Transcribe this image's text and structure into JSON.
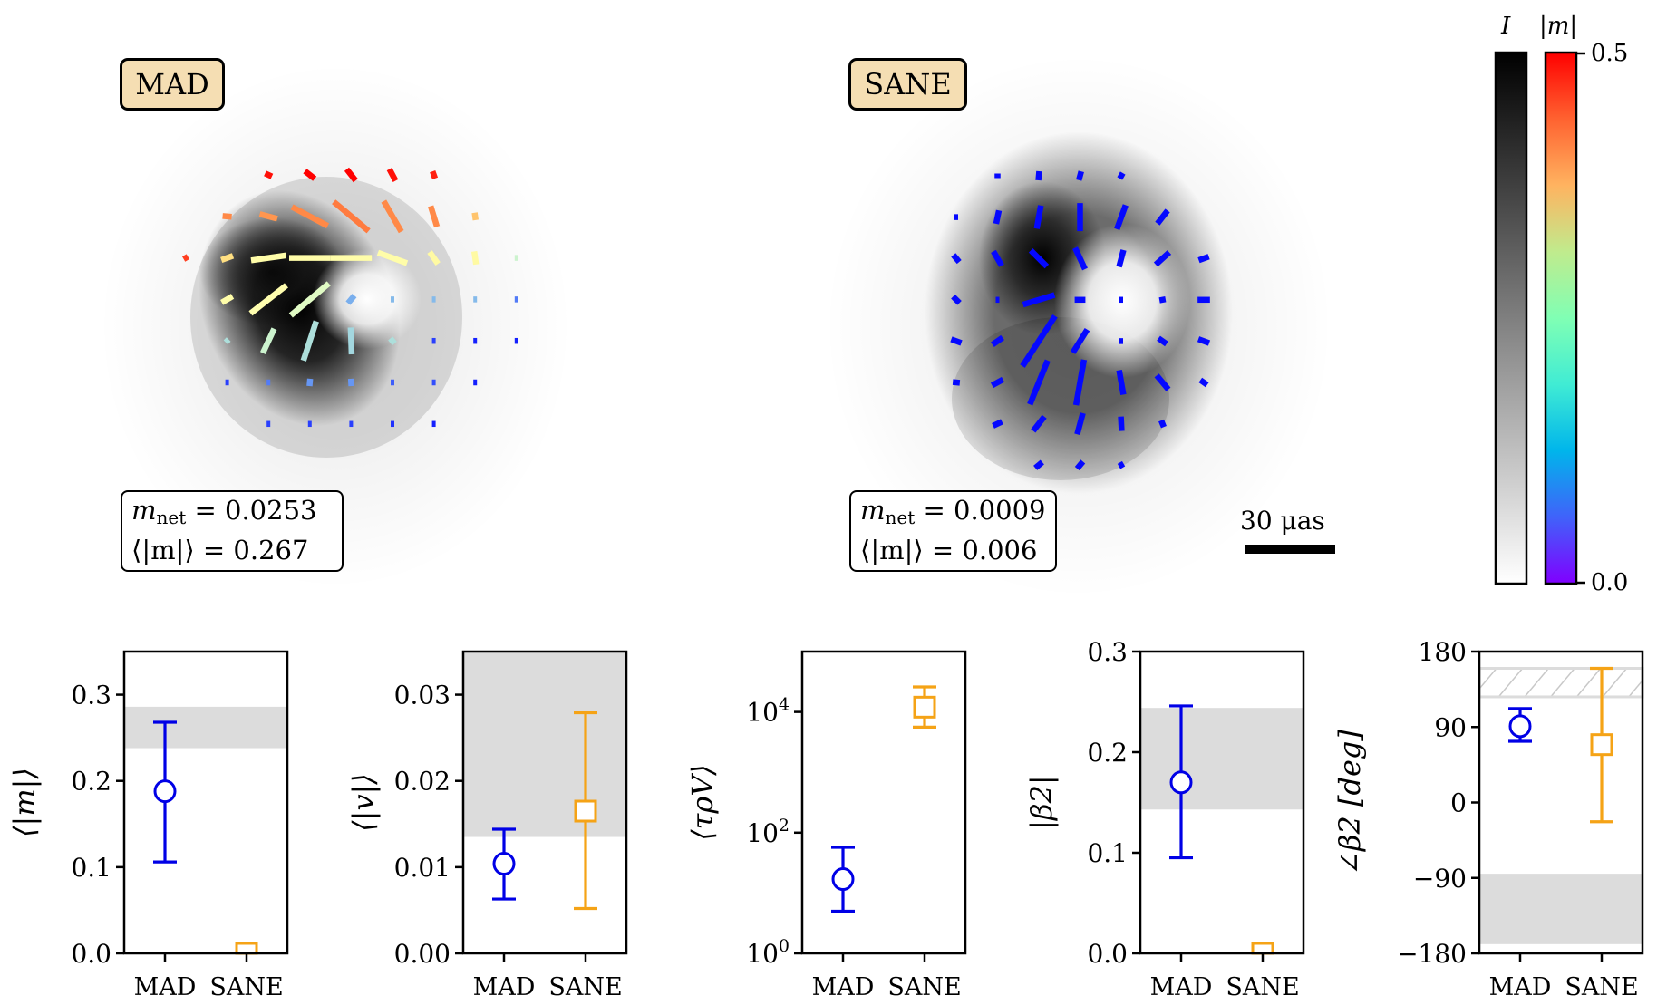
{
  "image_panels": [
    {
      "label": "MAD",
      "stats": {
        "mnet_label": "m",
        "mnet_sub": "net",
        "mnet_value": "= 0.0253",
        "avg_label": "⟨|m|⟩",
        "avg_value": "= 0.267"
      },
      "vectors": [
        {
          "col": 2,
          "row": 0,
          "angle": -25,
          "length": 0.18,
          "m": 0.49
        },
        {
          "col": 3,
          "row": 0,
          "angle": -38,
          "length": 0.3,
          "m": 0.5
        },
        {
          "col": 4,
          "row": 0,
          "angle": -52,
          "length": 0.35,
          "m": 0.5
        },
        {
          "col": 5,
          "row": 0,
          "angle": -62,
          "length": 0.32,
          "m": 0.49
        },
        {
          "col": 6,
          "row": 0,
          "angle": -70,
          "length": 0.18,
          "m": 0.48
        },
        {
          "col": 1,
          "row": 1,
          "angle": -5,
          "length": 0.22,
          "m": 0.41
        },
        {
          "col": 2,
          "row": 1,
          "angle": -15,
          "length": 0.44,
          "m": 0.4
        },
        {
          "col": 3,
          "row": 1,
          "angle": -28,
          "length": 0.98,
          "m": 0.41
        },
        {
          "col": 4,
          "row": 1,
          "angle": -40,
          "length": 1.1,
          "m": 0.42
        },
        {
          "col": 5,
          "row": 1,
          "angle": -60,
          "length": 0.85,
          "m": 0.41
        },
        {
          "col": 6,
          "row": 1,
          "angle": -73,
          "length": 0.52,
          "m": 0.41
        },
        {
          "col": 7,
          "row": 1,
          "angle": -82,
          "length": 0.18,
          "m": 0.36
        },
        {
          "col": 0,
          "row": 2,
          "angle": 30,
          "length": 0.12,
          "m": 0.46
        },
        {
          "col": 1,
          "row": 2,
          "angle": 20,
          "length": 0.3,
          "m": 0.33
        },
        {
          "col": 2,
          "row": 2,
          "angle": 8,
          "length": 0.85,
          "m": 0.27
        },
        {
          "col": 3,
          "row": 2,
          "angle": 0,
          "length": 1.0,
          "m": 0.27
        },
        {
          "col": 4,
          "row": 2,
          "angle": 0,
          "length": 1.0,
          "m": 0.27
        },
        {
          "col": 5,
          "row": 2,
          "angle": -20,
          "length": 0.75,
          "m": 0.27
        },
        {
          "col": 6,
          "row": 2,
          "angle": -55,
          "length": 0.35,
          "m": 0.28
        },
        {
          "col": 7,
          "row": 2,
          "angle": -82,
          "length": 0.32,
          "m": 0.28
        },
        {
          "col": 8,
          "row": 2,
          "angle": 0,
          "length": 0.04,
          "m": 0.2
        },
        {
          "col": 1,
          "row": 3,
          "angle": 30,
          "length": 0.3,
          "m": 0.27
        },
        {
          "col": 2,
          "row": 3,
          "angle": 38,
          "length": 1.1,
          "m": 0.26
        },
        {
          "col": 3,
          "row": 3,
          "angle": 40,
          "length": 1.2,
          "m": 0.22
        },
        {
          "col": 4,
          "row": 3,
          "angle": 50,
          "length": 0.24,
          "m": 0.12
        },
        {
          "col": 5,
          "row": 3,
          "angle": 0,
          "length": 0.04,
          "m": 0.13
        },
        {
          "col": 6,
          "row": 3,
          "angle": 0,
          "length": 0.04,
          "m": 0.13
        },
        {
          "col": 7,
          "row": 3,
          "angle": 0,
          "length": 0.04,
          "m": 0.13
        },
        {
          "col": 8,
          "row": 3,
          "angle": 0,
          "length": 0.04,
          "m": 0.08
        },
        {
          "col": 1,
          "row": 4,
          "angle": 45,
          "length": 0.1,
          "m": 0.17
        },
        {
          "col": 2,
          "row": 4,
          "angle": 65,
          "length": 0.65,
          "m": 0.2
        },
        {
          "col": 3,
          "row": 4,
          "angle": 72,
          "length": 1.0,
          "m": 0.17
        },
        {
          "col": 4,
          "row": 4,
          "angle": -88,
          "length": 0.65,
          "m": 0.16
        },
        {
          "col": 5,
          "row": 4,
          "angle": -50,
          "length": 0.16,
          "m": 0.17
        },
        {
          "col": 6,
          "row": 4,
          "angle": 0,
          "length": 0.04,
          "m": 0.04
        },
        {
          "col": 7,
          "row": 4,
          "angle": 0,
          "length": 0.04,
          "m": 0.02
        },
        {
          "col": 8,
          "row": 4,
          "angle": 0,
          "length": 0.04,
          "m": 0.02
        },
        {
          "col": 1,
          "row": 5,
          "angle": 0,
          "length": 0.04,
          "m": 0.04
        },
        {
          "col": 2,
          "row": 5,
          "angle": 0,
          "length": 0.04,
          "m": 0.08
        },
        {
          "col": 3,
          "row": 5,
          "angle": 85,
          "length": 0.18,
          "m": 0.1
        },
        {
          "col": 4,
          "row": 5,
          "angle": -87,
          "length": 0.18,
          "m": 0.1
        },
        {
          "col": 5,
          "row": 5,
          "angle": 0,
          "length": 0.04,
          "m": 0.06
        },
        {
          "col": 6,
          "row": 5,
          "angle": 0,
          "length": 0.04,
          "m": 0.05
        },
        {
          "col": 7,
          "row": 5,
          "angle": 0,
          "length": 0.04,
          "m": 0.02
        },
        {
          "col": 2,
          "row": 6,
          "angle": 0,
          "length": 0.04,
          "m": 0.04
        },
        {
          "col": 3,
          "row": 6,
          "angle": 0,
          "length": 0.04,
          "m": 0.04
        },
        {
          "col": 4,
          "row": 6,
          "angle": 0,
          "length": 0.04,
          "m": 0.04
        },
        {
          "col": 5,
          "row": 6,
          "angle": 0,
          "length": 0.04,
          "m": 0.03
        },
        {
          "col": 6,
          "row": 6,
          "angle": 0,
          "length": 0.04,
          "m": 0.02
        }
      ]
    },
    {
      "label": "SANE",
      "stats": {
        "mnet_label": "m",
        "mnet_sub": "net",
        "mnet_value": "= 0.0009",
        "avg_label": "⟨|m|⟩",
        "avg_value": "= 0.006"
      },
      "vectors": [
        {
          "col": 1,
          "row": 0,
          "angle": 90,
          "length": 0.11,
          "m": 0.005
        },
        {
          "col": 2,
          "row": 0,
          "angle": 85,
          "length": 0.22,
          "m": 0.005
        },
        {
          "col": 3,
          "row": 0,
          "angle": 75,
          "length": 0.22,
          "m": 0.005
        },
        {
          "col": 4,
          "row": 0,
          "angle": 60,
          "length": 0.15,
          "m": 0.005
        },
        {
          "col": 0,
          "row": 1,
          "angle": 0,
          "length": 0.04,
          "m": 0.005
        },
        {
          "col": 1,
          "row": 1,
          "angle": 78,
          "length": 0.33,
          "m": 0.005
        },
        {
          "col": 2,
          "row": 1,
          "angle": 80,
          "length": 0.57,
          "m": 0.005
        },
        {
          "col": 3,
          "row": 1,
          "angle": 90,
          "length": 0.68,
          "m": 0.005
        },
        {
          "col": 4,
          "row": 1,
          "angle": 70,
          "length": 0.62,
          "m": 0.005
        },
        {
          "col": 5,
          "row": 1,
          "angle": 52,
          "length": 0.4,
          "m": 0.005
        },
        {
          "col": 0,
          "row": 2,
          "angle": -50,
          "length": 0.22,
          "m": 0.005
        },
        {
          "col": 1,
          "row": 2,
          "angle": -60,
          "length": 0.4,
          "m": 0.005
        },
        {
          "col": 2,
          "row": 2,
          "angle": -45,
          "length": 0.55,
          "m": 0.005
        },
        {
          "col": 3,
          "row": 2,
          "angle": -65,
          "length": 0.57,
          "m": 0.005
        },
        {
          "col": 4,
          "row": 2,
          "angle": 75,
          "length": 0.42,
          "m": 0.005
        },
        {
          "col": 5,
          "row": 2,
          "angle": 42,
          "length": 0.44,
          "m": 0.005
        },
        {
          "col": 6,
          "row": 2,
          "angle": 20,
          "length": 0.26,
          "m": 0.005
        },
        {
          "col": 0,
          "row": 3,
          "angle": -45,
          "length": 0.22,
          "m": 0.005
        },
        {
          "col": 1,
          "row": 3,
          "angle": 0,
          "length": 0.04,
          "m": 0.005
        },
        {
          "col": 2,
          "row": 3,
          "angle": 17,
          "length": 0.8,
          "m": 0.005
        },
        {
          "col": 3,
          "row": 3,
          "angle": 0,
          "length": 0.26,
          "m": 0.005
        },
        {
          "col": 4,
          "row": 3,
          "angle": 0,
          "length": 0.04,
          "m": 0.005
        },
        {
          "col": 5,
          "row": 3,
          "angle": 10,
          "length": 0.15,
          "m": 0.005
        },
        {
          "col": 6,
          "row": 3,
          "angle": 0,
          "length": 0.3,
          "m": 0.005
        },
        {
          "col": 0,
          "row": 4,
          "angle": -20,
          "length": 0.26,
          "m": 0.005
        },
        {
          "col": 1,
          "row": 4,
          "angle": 35,
          "length": 0.3,
          "m": 0.005
        },
        {
          "col": 2,
          "row": 4,
          "angle": 57,
          "length": 1.45,
          "m": 0.005
        },
        {
          "col": 3,
          "row": 4,
          "angle": 58,
          "length": 0.66,
          "m": 0.005
        },
        {
          "col": 4,
          "row": 4,
          "angle": 0,
          "length": 0.04,
          "m": 0.005
        },
        {
          "col": 5,
          "row": 4,
          "angle": -35,
          "length": 0.24,
          "m": 0.005
        },
        {
          "col": 6,
          "row": 4,
          "angle": -20,
          "length": 0.28,
          "m": 0.005
        },
        {
          "col": 0,
          "row": 5,
          "angle": -5,
          "length": 0.17,
          "m": 0.005
        },
        {
          "col": 1,
          "row": 5,
          "angle": 28,
          "length": 0.3,
          "m": 0.005
        },
        {
          "col": 2,
          "row": 5,
          "angle": 68,
          "length": 1.15,
          "m": 0.005
        },
        {
          "col": 3,
          "row": 5,
          "angle": 80,
          "length": 1.12,
          "m": 0.005
        },
        {
          "col": 4,
          "row": 5,
          "angle": -80,
          "length": 0.6,
          "m": 0.005
        },
        {
          "col": 5,
          "row": 5,
          "angle": -50,
          "length": 0.44,
          "m": 0.005
        },
        {
          "col": 6,
          "row": 5,
          "angle": -35,
          "length": 0.2,
          "m": 0.005
        },
        {
          "col": 1,
          "row": 6,
          "angle": 25,
          "length": 0.24,
          "m": 0.005
        },
        {
          "col": 2,
          "row": 6,
          "angle": 52,
          "length": 0.44,
          "m": 0.005
        },
        {
          "col": 3,
          "row": 6,
          "angle": 75,
          "length": 0.53,
          "m": 0.005
        },
        {
          "col": 4,
          "row": 6,
          "angle": -87,
          "length": 0.35,
          "m": 0.005
        },
        {
          "col": 5,
          "row": 6,
          "angle": -68,
          "length": 0.17,
          "m": 0.005
        },
        {
          "col": 2,
          "row": 7,
          "angle": 40,
          "length": 0.22,
          "m": 0.005
        },
        {
          "col": 3,
          "row": 7,
          "angle": 50,
          "length": 0.22,
          "m": 0.005
        },
        {
          "col": 4,
          "row": 7,
          "angle": 30,
          "length": 0.13,
          "m": 0.005
        }
      ]
    }
  ],
  "scale_bar": {
    "label": "30 μas"
  },
  "colorbars": {
    "intensity": {
      "title": "I",
      "cmap": "gray_r"
    },
    "polarization": {
      "title": "|m|",
      "cmap": "rainbow",
      "min_label": "0.0",
      "max_label": "0.5",
      "range": [
        0.0,
        0.5
      ]
    }
  },
  "colors": {
    "MAD": "#0000e6",
    "SANE": "#f5a316",
    "band": "#dcdcdc"
  },
  "chart_data": [
    {
      "type": "scatter",
      "title": "",
      "ylabel": "⟨|m|⟩",
      "categories": [
        "MAD",
        "SANE"
      ],
      "ylim": [
        0,
        0.35
      ],
      "yscale": "linear",
      "yticks": [
        0.0,
        0.1,
        0.2,
        0.3
      ],
      "ytick_labels": [
        "0.0",
        "0.1",
        "0.2",
        "0.3"
      ],
      "series": [
        {
          "name": "MAD",
          "marker": "circle",
          "value": 0.188,
          "err_low": 0.106,
          "err_high": 0.268
        },
        {
          "name": "SANE",
          "marker": "square",
          "value": 0.0,
          "err_low": 0.0,
          "err_high": 0.0
        }
      ],
      "bands": [
        {
          "low": 0.238,
          "high": 0.286,
          "style": "solid"
        }
      ]
    },
    {
      "type": "scatter",
      "title": "",
      "ylabel": "⟨|v|⟩",
      "categories": [
        "MAD",
        "SANE"
      ],
      "ylim": [
        0,
        0.035
      ],
      "yscale": "linear",
      "yticks": [
        0.0,
        0.01,
        0.02,
        0.03
      ],
      "ytick_labels": [
        "0.00",
        "0.01",
        "0.02",
        "0.03"
      ],
      "series": [
        {
          "name": "MAD",
          "marker": "circle",
          "value": 0.0104,
          "err_low": 0.0063,
          "err_high": 0.0144
        },
        {
          "name": "SANE",
          "marker": "square",
          "value": 0.0165,
          "err_low": 0.0052,
          "err_high": 0.0279
        }
      ],
      "bands": [
        {
          "low": 0.0135,
          "high": 0.035,
          "style": "solid"
        }
      ]
    },
    {
      "type": "scatter",
      "title": "",
      "ylabel": "⟨τρV⟩",
      "categories": [
        "MAD",
        "SANE"
      ],
      "ylim": [
        1,
        100000
      ],
      "yscale": "log",
      "yticks": [
        1,
        100,
        10000
      ],
      "ytick_labels": [
        "10^0",
        "10^2",
        "10^4"
      ],
      "series": [
        {
          "name": "MAD",
          "marker": "circle",
          "value": 17,
          "err_low": 5,
          "err_high": 57
        },
        {
          "name": "SANE",
          "marker": "square",
          "value": 12000,
          "err_low": 5600,
          "err_high": 26000
        }
      ],
      "bands": []
    },
    {
      "type": "scatter",
      "title": "",
      "ylabel": "|β2|",
      "categories": [
        "MAD",
        "SANE"
      ],
      "ylim": [
        0,
        0.3
      ],
      "yscale": "linear",
      "yticks": [
        0.0,
        0.1,
        0.2,
        0.3
      ],
      "ytick_labels": [
        "0.0",
        "0.1",
        "0.2",
        "0.3"
      ],
      "series": [
        {
          "name": "MAD",
          "marker": "circle",
          "value": 0.17,
          "err_low": 0.095,
          "err_high": 0.246
        },
        {
          "name": "SANE",
          "marker": "square",
          "value": 0.0,
          "err_low": 0.0,
          "err_high": 0.0
        }
      ],
      "bands": [
        {
          "low": 0.143,
          "high": 0.244,
          "style": "solid"
        }
      ]
    },
    {
      "type": "scatter",
      "title": "",
      "ylabel": "∠β2 [deg]",
      "categories": [
        "MAD",
        "SANE"
      ],
      "ylim": [
        -180,
        180
      ],
      "yscale": "linear",
      "yticks": [
        -180,
        -90,
        0,
        90,
        180
      ],
      "ytick_labels": [
        "−180",
        "−90",
        "0",
        "90",
        "180"
      ],
      "series": [
        {
          "name": "MAD",
          "marker": "circle",
          "value": 91,
          "err_low": 73,
          "err_high": 112
        },
        {
          "name": "SANE",
          "marker": "square",
          "value": 69,
          "err_low": -23,
          "err_high": 160
        }
      ],
      "bands": [
        {
          "low": 126,
          "high": 160,
          "style": "hatched"
        },
        {
          "low": -169,
          "high": -85,
          "style": "solid"
        }
      ]
    }
  ]
}
